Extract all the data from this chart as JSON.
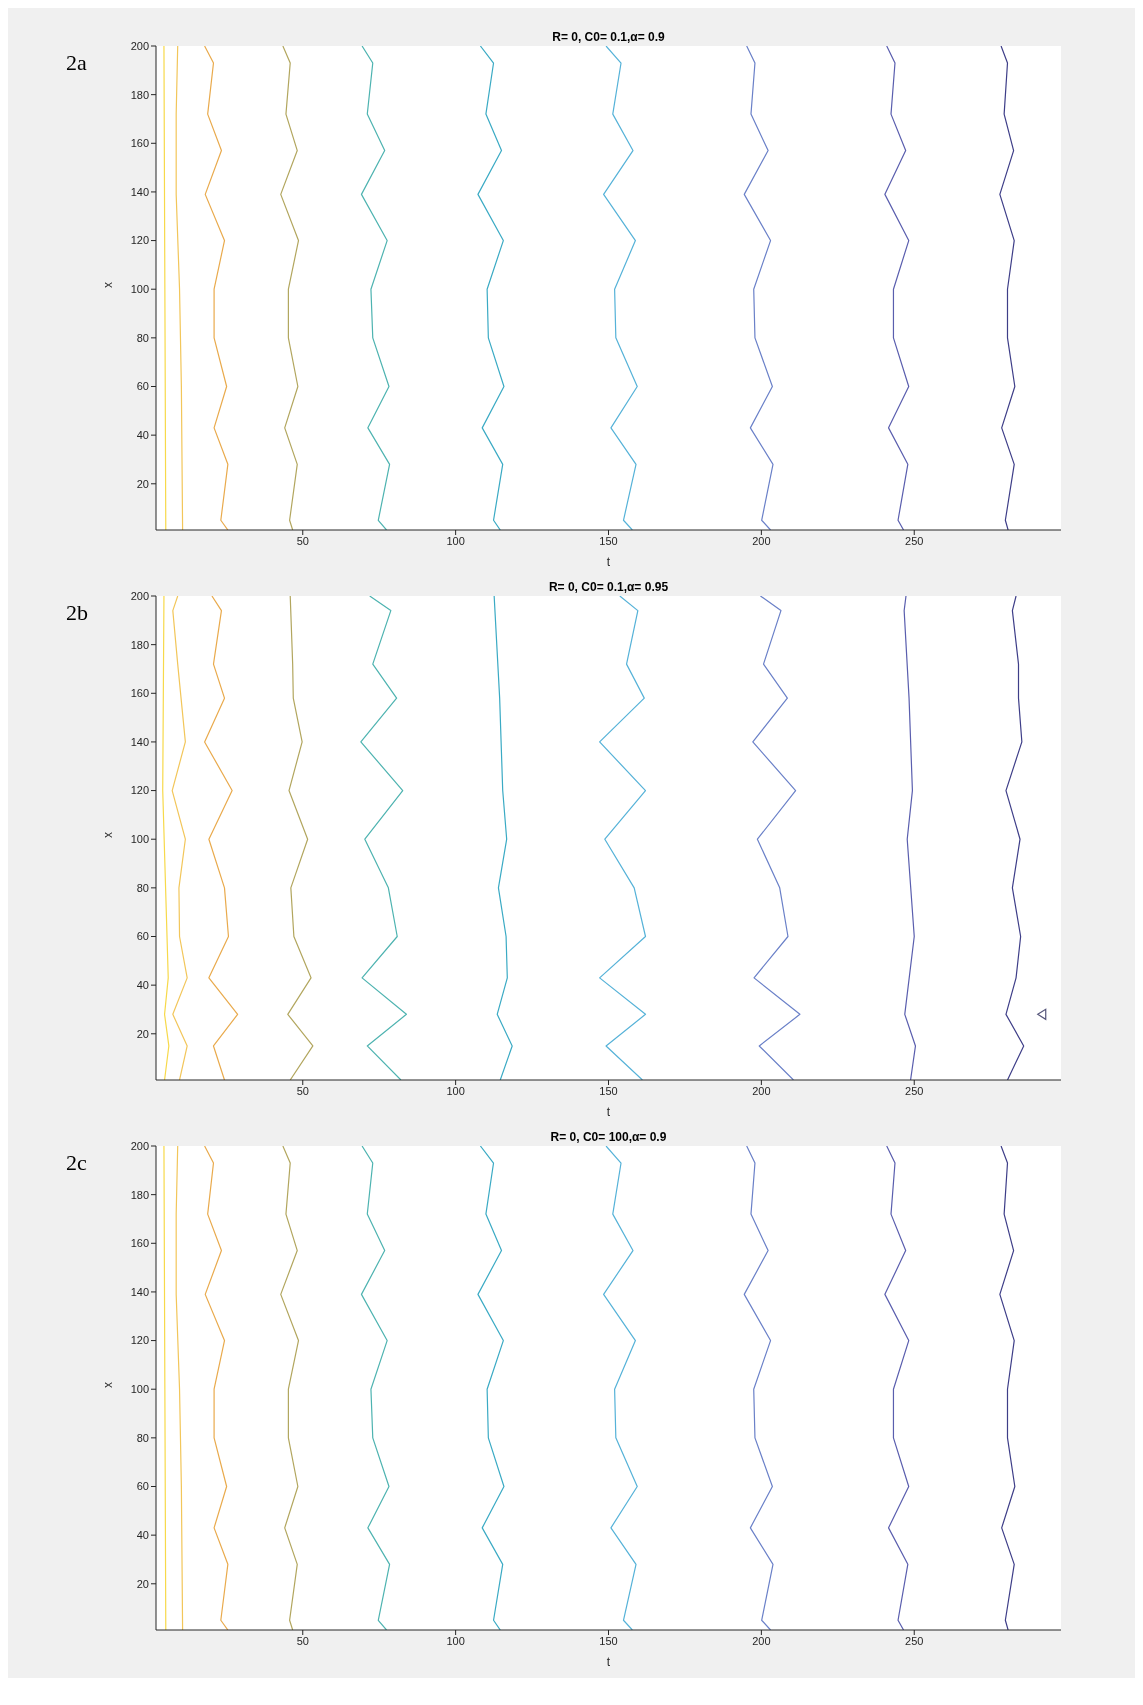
{
  "chart_data": [
    {
      "type": "line",
      "title": "R= 0, C0= 0.1,α= 0.9",
      "xlabel": "t",
      "ylabel": "x",
      "annotations": [
        "2a"
      ],
      "xlim": [
        2,
        298
      ],
      "xticks": [
        50,
        100,
        150,
        200,
        250
      ],
      "ylim": [
        1,
        200
      ],
      "yticks": [
        20,
        40,
        60,
        80,
        100,
        120,
        140,
        160,
        180,
        200
      ],
      "marker": "none",
      "series": [
        {
          "color": "#f7d94a",
          "x": [
            4.6,
            4.9,
            5.2
          ],
          "values": [
            200,
            100,
            1
          ]
        },
        {
          "color": "#f2c65a",
          "x": [
            9.1,
            8.6,
            8.6,
            9.7,
            10.3,
            10.7
          ],
          "values": [
            200,
            172,
            139,
            100,
            60,
            1
          ]
        },
        {
          "color": "#e9aa4c",
          "x": [
            17.9,
            20.8,
            18.9,
            23.4,
            18.1,
            24.4,
            21.0,
            21.0,
            25.1,
            21.0,
            25.5,
            23.2,
            25.5
          ],
          "values": [
            200,
            193,
            172,
            157,
            139,
            120,
            100,
            80,
            60,
            43,
            28,
            5,
            1
          ]
        },
        {
          "color": "#b2a65e",
          "x": [
            43.5,
            45.9,
            44.5,
            48.2,
            42.8,
            48.6,
            45.3,
            45.3,
            48.4,
            44.1,
            48.2,
            45.7,
            46.7
          ],
          "values": [
            200,
            193,
            172,
            157,
            139,
            120,
            100,
            80,
            60,
            43,
            28,
            5,
            1
          ]
        },
        {
          "color": "#4db3b0",
          "x": [
            69.4,
            72.9,
            71.1,
            76.8,
            69.2,
            77.6,
            72.3,
            72.9,
            78.2,
            71.3,
            78.4,
            74.7,
            77.4
          ],
          "values": [
            200,
            193,
            172,
            157,
            139,
            120,
            100,
            80,
            60,
            43,
            28,
            5,
            1
          ]
        },
        {
          "color": "#3aaac4",
          "x": [
            108.1,
            112.4,
            109.9,
            115.0,
            107.3,
            115.6,
            110.3,
            110.7,
            115.8,
            108.7,
            115.4,
            112.4,
            114.6
          ],
          "values": [
            200,
            193,
            172,
            157,
            139,
            120,
            100,
            80,
            60,
            43,
            28,
            5,
            1
          ]
        },
        {
          "color": "#55b2d8",
          "x": [
            149.2,
            154.1,
            151.4,
            158.0,
            148.4,
            158.8,
            152.0,
            152.4,
            159.4,
            150.8,
            159.0,
            154.9,
            157.8
          ],
          "values": [
            200,
            193,
            172,
            157,
            139,
            120,
            100,
            80,
            60,
            43,
            28,
            5,
            1
          ]
        },
        {
          "color": "#6a80c8",
          "x": [
            195.2,
            197.9,
            196.6,
            202.2,
            194.4,
            203.0,
            197.5,
            197.9,
            203.6,
            196.4,
            203.8,
            200.1,
            203.0
          ],
          "values": [
            200,
            193,
            172,
            157,
            139,
            120,
            100,
            80,
            60,
            43,
            28,
            5,
            1
          ]
        },
        {
          "color": "#5a5eae",
          "x": [
            241.0,
            243.7,
            242.4,
            247.2,
            240.4,
            248.2,
            243.2,
            243.2,
            248.2,
            241.6,
            247.9,
            244.7,
            246.5
          ],
          "values": [
            200,
            193,
            172,
            157,
            139,
            120,
            100,
            80,
            60,
            43,
            28,
            5,
            1
          ]
        },
        {
          "color": "#3e3e88",
          "x": [
            278.4,
            280.5,
            279.4,
            282.5,
            278.0,
            282.7,
            280.5,
            280.5,
            282.9,
            278.6,
            282.7,
            279.8,
            280.7
          ],
          "values": [
            200,
            193,
            172,
            157,
            139,
            120,
            100,
            80,
            60,
            43,
            28,
            5,
            1
          ]
        }
      ]
    },
    {
      "type": "line",
      "title": "R= 0, C0= 0.1,α= 0.95",
      "xlabel": "t",
      "ylabel": "x",
      "annotations": [
        "2b"
      ],
      "xlim": [
        2,
        298
      ],
      "xticks": [
        50,
        100,
        150,
        200,
        250
      ],
      "ylim": [
        1,
        200
      ],
      "yticks": [
        20,
        40,
        60,
        80,
        100,
        120,
        140,
        160,
        180,
        200
      ],
      "marker": "none",
      "series": [
        {
          "color": "#f7d94a",
          "x": [
            4.6,
            4.2,
            6.0,
            4.8,
            6.2,
            4.8
          ],
          "values": [
            200,
            120,
            43,
            28,
            15,
            1
          ]
        },
        {
          "color": "#f2c65a",
          "x": [
            9.1,
            7.5,
            9.1,
            11.6,
            7.3,
            11.6,
            9.5,
            9.7,
            12.2,
            7.5,
            12.2,
            9.7
          ],
          "values": [
            200,
            194,
            172,
            140,
            120,
            100,
            80,
            60,
            43,
            28,
            15,
            1
          ]
        },
        {
          "color": "#e9aa4c",
          "x": [
            20.3,
            23.4,
            20.8,
            24.4,
            17.9,
            26.9,
            19.3,
            24.4,
            25.7,
            19.3,
            28.7,
            20.8,
            24.4
          ],
          "values": [
            200,
            194,
            172,
            158,
            140,
            120,
            100,
            80,
            60,
            43,
            28,
            15,
            1
          ]
        },
        {
          "color": "#b2a65e",
          "x": [
            45.9,
            46.7,
            46.9,
            49.8,
            45.5,
            51.6,
            46.1,
            47.1,
            52.7,
            45.1,
            53.3,
            45.9
          ],
          "values": [
            200,
            172,
            158,
            140,
            120,
            100,
            80,
            60,
            43,
            28,
            15,
            1
          ]
        },
        {
          "color": "#4db3b0",
          "x": [
            71.9,
            78.8,
            72.9,
            80.7,
            69.0,
            82.7,
            70.3,
            78.0,
            80.9,
            69.4,
            83.9,
            71.1,
            82.1
          ],
          "values": [
            200,
            194,
            172,
            158,
            140,
            120,
            100,
            80,
            60,
            43,
            28,
            15,
            1
          ]
        },
        {
          "color": "#3aaac4",
          "x": [
            112.6,
            114.4,
            115.4,
            116.7,
            114.0,
            116.5,
            116.9,
            113.6,
            118.5,
            114.6
          ],
          "values": [
            200,
            158,
            120,
            100,
            80,
            60,
            43,
            28,
            15,
            1
          ]
        },
        {
          "color": "#55b2d8",
          "x": [
            153.7,
            159.6,
            155.9,
            161.7,
            147.1,
            162.1,
            148.8,
            158.4,
            162.1,
            147.1,
            162.1,
            149.2,
            161.1
          ],
          "values": [
            200,
            194,
            172,
            158,
            140,
            120,
            100,
            80,
            60,
            43,
            28,
            15,
            1
          ]
        },
        {
          "color": "#6a80c8",
          "x": [
            199.7,
            206.4,
            200.7,
            208.5,
            197.2,
            211.2,
            198.7,
            206.0,
            208.7,
            197.6,
            212.6,
            199.3,
            210.5
          ],
          "values": [
            200,
            194,
            172,
            158,
            140,
            120,
            100,
            80,
            60,
            43,
            28,
            15,
            1
          ]
        },
        {
          "color": "#5a5eae",
          "x": [
            247.3,
            246.7,
            248.3,
            249.4,
            247.7,
            250.0,
            246.9,
            250.4,
            248.8
          ],
          "values": [
            200,
            194,
            158,
            120,
            100,
            60,
            28,
            15,
            1
          ]
        },
        {
          "color": "#3e3e88",
          "x": [
            283.3,
            282.1,
            284.1,
            284.1,
            285.2,
            280.0,
            284.6,
            282.1,
            284.8,
            283.3,
            280.0,
            285.8,
            280.5
          ],
          "values": [
            200,
            194,
            172,
            158,
            140,
            120,
            100,
            80,
            60,
            43,
            28,
            15,
            1
          ]
        },
        {
          "type": "scatter",
          "marker": "triangle",
          "color": "#55557a",
          "x": [
            291.7
          ],
          "values": [
            28
          ]
        }
      ]
    },
    {
      "type": "line",
      "title": "R= 0, C0= 100,α= 0.9",
      "xlabel": "t",
      "ylabel": "x",
      "annotations": [
        "2c"
      ],
      "xlim": [
        2,
        298
      ],
      "xticks": [
        50,
        100,
        150,
        200,
        250
      ],
      "ylim": [
        1,
        200
      ],
      "yticks": [
        20,
        40,
        60,
        80,
        100,
        120,
        140,
        160,
        180,
        200
      ],
      "marker": "none",
      "series": [
        {
          "color": "#f7d94a",
          "x": [
            4.6,
            4.9,
            5.2
          ],
          "values": [
            200,
            100,
            1
          ]
        },
        {
          "color": "#f2c65a",
          "x": [
            9.1,
            8.6,
            8.6,
            9.7,
            10.3,
            10.7
          ],
          "values": [
            200,
            172,
            139,
            100,
            60,
            1
          ]
        },
        {
          "color": "#e9aa4c",
          "x": [
            17.9,
            20.8,
            18.9,
            23.4,
            18.1,
            24.4,
            21.0,
            21.0,
            25.1,
            21.0,
            25.5,
            23.2,
            25.5
          ],
          "values": [
            200,
            193,
            172,
            157,
            139,
            120,
            100,
            80,
            60,
            43,
            28,
            5,
            1
          ]
        },
        {
          "color": "#b2a65e",
          "x": [
            43.5,
            45.9,
            44.5,
            48.2,
            42.8,
            48.6,
            45.3,
            45.3,
            48.4,
            44.1,
            48.2,
            45.7,
            46.7
          ],
          "values": [
            200,
            193,
            172,
            157,
            139,
            120,
            100,
            80,
            60,
            43,
            28,
            5,
            1
          ]
        },
        {
          "color": "#4db3b0",
          "x": [
            69.4,
            72.9,
            71.1,
            76.8,
            69.2,
            77.6,
            72.3,
            72.9,
            78.2,
            71.3,
            78.4,
            74.7,
            77.4
          ],
          "values": [
            200,
            193,
            172,
            157,
            139,
            120,
            100,
            80,
            60,
            43,
            28,
            5,
            1
          ]
        },
        {
          "color": "#3aaac4",
          "x": [
            108.1,
            112.4,
            109.9,
            115.0,
            107.3,
            115.6,
            110.3,
            110.7,
            115.8,
            108.7,
            115.4,
            112.4,
            114.6
          ],
          "values": [
            200,
            193,
            172,
            157,
            139,
            120,
            100,
            80,
            60,
            43,
            28,
            5,
            1
          ]
        },
        {
          "color": "#55b2d8",
          "x": [
            149.2,
            154.1,
            151.4,
            158.0,
            148.4,
            158.8,
            152.0,
            152.4,
            159.4,
            150.8,
            159.0,
            154.9,
            157.8
          ],
          "values": [
            200,
            193,
            172,
            157,
            139,
            120,
            100,
            80,
            60,
            43,
            28,
            5,
            1
          ]
        },
        {
          "color": "#6a80c8",
          "x": [
            195.2,
            197.9,
            196.6,
            202.2,
            194.4,
            203.0,
            197.5,
            197.9,
            203.6,
            196.4,
            203.8,
            200.1,
            203.0
          ],
          "values": [
            200,
            193,
            172,
            157,
            139,
            120,
            100,
            80,
            60,
            43,
            28,
            5,
            1
          ]
        },
        {
          "color": "#5a5eae",
          "x": [
            241.0,
            243.7,
            242.4,
            247.2,
            240.4,
            248.2,
            243.2,
            243.2,
            248.2,
            241.6,
            247.9,
            244.7,
            246.5
          ],
          "values": [
            200,
            193,
            172,
            157,
            139,
            120,
            100,
            80,
            60,
            43,
            28,
            5,
            1
          ]
        },
        {
          "color": "#3e3e88",
          "x": [
            278.4,
            280.5,
            279.4,
            282.5,
            278.0,
            282.7,
            280.5,
            280.5,
            282.9,
            278.6,
            282.7,
            279.8,
            280.7
          ],
          "values": [
            200,
            193,
            172,
            157,
            139,
            120,
            100,
            80,
            60,
            43,
            28,
            5,
            1
          ]
        }
      ]
    }
  ]
}
